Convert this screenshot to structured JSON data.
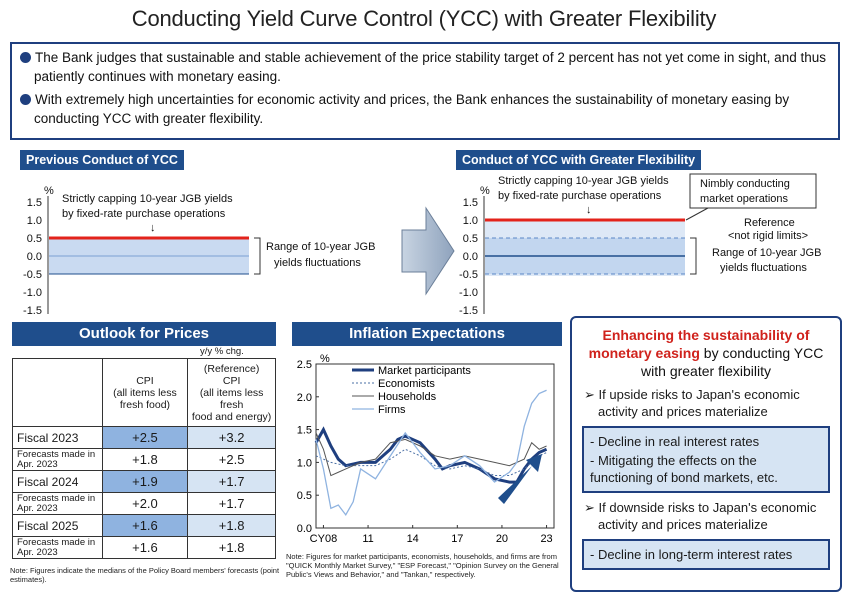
{
  "title": "Conducting Yield Curve Control (YCC) with Greater Flexibility",
  "intro": {
    "bullet1": "The Bank judges that sustainable and stable achievement of the price stability target of 2 percent has not yet come in sight, and thus patiently continues with monetary easing.",
    "bullet2": "With extremely high uncertainties for economic activity and prices, the Bank enhances the sustainability of monetary easing by conducting YCC with greater flexibility."
  },
  "previous": {
    "label": "Previous Conduct of YCC",
    "unit": "%",
    "yticks": [
      "1.5",
      "1.0",
      "0.5",
      "0.0",
      "-0.5",
      "-1.0",
      "-1.5"
    ],
    "cap_note_line1": "Strictly capping 10-year JGB yields",
    "cap_note_line2": "by fixed-rate purchase operations",
    "range_note_line1": "Range of 10-year JGB",
    "range_note_line2": "yields fluctuations",
    "cap_value": 0.5,
    "range_low": -0.5,
    "range_high": 0.5
  },
  "flexible": {
    "label": "Conduct of YCC with Greater Flexibility",
    "unit": "%",
    "yticks": [
      "1.5",
      "1.0",
      "0.5",
      "0.0",
      "-0.5",
      "-1.0",
      "-1.5"
    ],
    "cap_note_line1": "Strictly capping 10-year JGB yields",
    "cap_note_line2": "by fixed-rate purchase operations",
    "nimble_line1": "Nimbly conducting",
    "nimble_line2": "market operations",
    "reference_line1": "Reference",
    "reference_line2": "<not rigid limits>",
    "range_note_line1": "Range of 10-year JGB",
    "range_note_line2": "yields fluctuations",
    "cap_value": 1.0,
    "range_low": -0.5,
    "range_high": 0.5
  },
  "outlook": {
    "header": "Outlook for Prices",
    "unit_note": "y/y % chg.",
    "col1_line1": "CPI",
    "col1_line2": "(all items less",
    "col1_line3": "fresh food)",
    "col2_line1": "(Reference)",
    "col2_line2": "CPI",
    "col2_line3": "(all items less fresh",
    "col2_line4": "food and energy)",
    "rows": [
      {
        "label": "Fiscal 2023",
        "v1": "+2.5",
        "v2": "+3.2",
        "prior_label": "Forecasts made in Apr. 2023",
        "p1": "+1.8",
        "p2": "+2.5"
      },
      {
        "label": "Fiscal 2024",
        "v1": "+1.9",
        "v2": "+1.7",
        "prior_label": "Forecasts made in Apr. 2023",
        "p1": "+2.0",
        "p2": "+1.7"
      },
      {
        "label": "Fiscal 2025",
        "v1": "+1.6",
        "v2": "+1.8",
        "prior_label": "Forecasts made in Apr. 2023",
        "p1": "+1.6",
        "p2": "+1.8"
      }
    ],
    "note": "Note: Figures indicate the medians of the Policy Board members' forecasts (point estimates)."
  },
  "inflation": {
    "header": "Inflation Expectations",
    "note": "Note: Figures for market participants, economists, households, and firms are from \"QUICK Monthly Market Survey,\" \"ESP Forecast,\" \"Opinion Survey on the General Public's Views and Behavior,\" and \"Tankan,\" respectively."
  },
  "chart_data": {
    "type": "line",
    "ylabel": "%",
    "ylim": [
      0.0,
      2.5
    ],
    "yticks": [
      "2.5",
      "2.0",
      "1.5",
      "1.0",
      "0.5",
      "0.0"
    ],
    "xticks": [
      "CY08",
      "11",
      "14",
      "17",
      "20",
      "23"
    ],
    "xlim": [
      2008,
      2024
    ],
    "legend_position": "top-right",
    "series": [
      {
        "name": "Market participants",
        "x": [
          2008,
          2008.5,
          2009,
          2009.5,
          2010,
          2011,
          2012,
          2013,
          2013.5,
          2014,
          2014.5,
          2015,
          2016,
          2016.5,
          2017,
          2018,
          2019,
          2020,
          2021,
          2021.5,
          2022,
          2022.5,
          2023,
          2023.5
        ],
        "values": [
          1.3,
          1.5,
          1.25,
          1.05,
          0.95,
          1.0,
          1.0,
          1.2,
          1.35,
          1.4,
          1.35,
          1.3,
          1.05,
          0.9,
          0.95,
          1.0,
          0.9,
          0.75,
          0.7,
          0.7,
          0.9,
          1.05,
          1.15,
          1.2
        ]
      },
      {
        "name": "Economists",
        "x": [
          2008,
          2009,
          2010,
          2011,
          2012,
          2013,
          2014,
          2015,
          2016,
          2017,
          2018,
          2019,
          2020,
          2021,
          2022,
          2023,
          2023.5
        ],
        "values": [
          1.1,
          1.0,
          0.95,
          0.95,
          0.95,
          1.05,
          1.2,
          1.1,
          0.95,
          0.9,
          0.95,
          0.9,
          0.8,
          0.8,
          0.9,
          1.1,
          1.15
        ]
      },
      {
        "name": "Households",
        "x": [
          2008,
          2008.5,
          2009,
          2009.5,
          2010,
          2011,
          2012,
          2013,
          2014,
          2015,
          2016,
          2017,
          2018,
          2019,
          2020,
          2021,
          2022,
          2022.5,
          2023,
          2023.5
        ],
        "values": [
          1.45,
          1.2,
          0.8,
          0.85,
          0.9,
          1.0,
          1.05,
          1.3,
          1.35,
          1.25,
          1.1,
          1.05,
          1.1,
          1.05,
          1.0,
          0.95,
          1.05,
          1.3,
          1.2,
          1.25
        ]
      },
      {
        "name": "Firms",
        "x": [
          2008,
          2008.5,
          2009,
          2009.5,
          2010,
          2010.5,
          2011,
          2012,
          2013,
          2014,
          2014.5,
          2015,
          2016,
          2017,
          2018,
          2019,
          2020,
          2021,
          2021.5,
          2022,
          2022.5,
          2023,
          2023.5
        ],
        "values": [
          1.35,
          0.9,
          0.3,
          0.35,
          0.2,
          0.4,
          0.9,
          0.75,
          1.1,
          1.45,
          1.3,
          1.15,
          0.9,
          0.95,
          1.1,
          0.95,
          0.7,
          0.85,
          1.0,
          1.55,
          1.9,
          2.05,
          2.1
        ]
      }
    ]
  },
  "right": {
    "title_red": "Enhancing the sustainability of monetary easing",
    "title_rest": "by conducting YCC with greater flexibility",
    "upside": "If upside risks to Japan's economic activity and prices materialize",
    "upside_effect1": "- Decline in real interest rates",
    "upside_effect2": "- Mitigating the effects on the functioning of bond markets, etc.",
    "downside": "If downside risks to Japan's economic activity and prices materialize",
    "downside_effect1": "- Decline in long-term interest rates",
    "colors": {
      "accent": "#1f4e8c",
      "red": "#d0221c",
      "light_blue": "#d6e4f3"
    }
  }
}
